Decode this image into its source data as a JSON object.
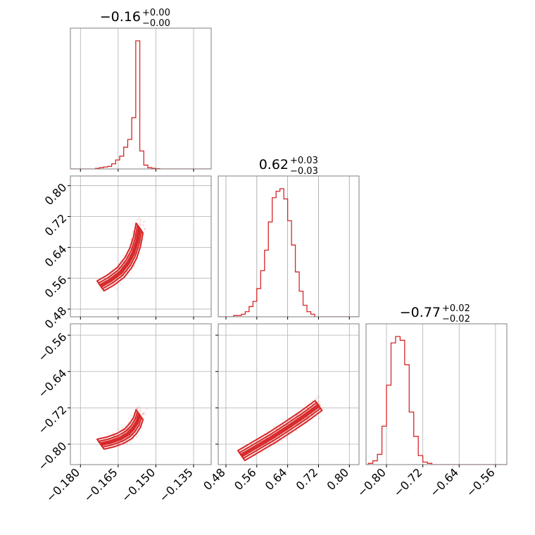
{
  "figure": {
    "accent_color": "#d62728",
    "grid": true,
    "titles": [
      {
        "value": "−0.16",
        "sup": "+0.00",
        "sub": "−0.00"
      },
      {
        "value": "0.62",
        "sup": "+0.03",
        "sub": "−0.03"
      },
      {
        "value": "−0.77",
        "sup": "+0.02",
        "sub": "−0.02"
      }
    ]
  },
  "chart_data": [
    {
      "type": "histogram",
      "panel": "row1-col1",
      "title": "−0.16 (+0.00 / −0.00)",
      "xlim": [
        -0.184,
        -0.128
      ],
      "x_ticks": [
        -0.18,
        -0.165,
        -0.15,
        -0.135
      ],
      "x_tick_labels": [
        "−0.180",
        "−0.165",
        "−0.150",
        "−0.135"
      ],
      "x": [
        -0.1732,
        -0.1716,
        -0.17,
        -0.1684,
        -0.1668,
        -0.1652,
        -0.1636,
        -0.162,
        -0.1604,
        -0.1588,
        -0.1572,
        -0.1556,
        -0.154,
        -0.1524,
        -0.1508,
        -0.1492
      ],
      "values": [
        0.005,
        0.01,
        0.015,
        0.02,
        0.04,
        0.07,
        0.1,
        0.17,
        0.23,
        0.4,
        1.0,
        0.14,
        0.03,
        0.01,
        0.005,
        0.002
      ]
    },
    {
      "type": "scatter+contour",
      "panel": "row2-col1",
      "xlim": [
        -0.184,
        -0.128
      ],
      "ylim": [
        0.46,
        0.825
      ],
      "y_ticks": [
        0.48,
        0.56,
        0.64,
        0.72,
        0.8
      ],
      "y_tick_labels": [
        "0.48",
        "0.56",
        "0.64",
        "0.72",
        "0.80"
      ],
      "ridge": {
        "x": [
          -0.172,
          -0.168,
          -0.164,
          -0.161,
          -0.159,
          -0.1575,
          -0.1565
        ],
        "y": [
          0.54,
          0.555,
          0.575,
          0.6,
          0.625,
          0.655,
          0.69
        ]
      }
    },
    {
      "type": "histogram",
      "panel": "row2-col2",
      "title": "0.62 (+0.03 / −0.03)",
      "xlim": [
        0.46,
        0.825
      ],
      "x_ticks": [
        0.48,
        0.56,
        0.64,
        0.72,
        0.8
      ],
      "x_tick_labels": [
        "0.48",
        "0.56",
        "0.64",
        "0.72",
        "0.80"
      ],
      "x": [
        0.505,
        0.515,
        0.525,
        0.535,
        0.545,
        0.555,
        0.565,
        0.575,
        0.585,
        0.595,
        0.605,
        0.615,
        0.625,
        0.635,
        0.645,
        0.655,
        0.665,
        0.675,
        0.685,
        0.695,
        0.705
      ],
      "values": [
        0.01,
        0.01,
        0.02,
        0.04,
        0.08,
        0.12,
        0.22,
        0.36,
        0.52,
        0.74,
        0.93,
        0.98,
        1.0,
        0.92,
        0.75,
        0.56,
        0.35,
        0.2,
        0.09,
        0.04,
        0.02
      ]
    },
    {
      "type": "scatter+contour",
      "panel": "row3-col1",
      "xlim": [
        -0.184,
        -0.128
      ],
      "ylim": [
        -0.845,
        -0.535
      ],
      "x_ticks": [
        -0.18,
        -0.165,
        -0.15,
        -0.135
      ],
      "x_tick_labels": [
        "−0.180",
        "−0.165",
        "−0.150",
        "−0.135"
      ],
      "y_ticks": [
        -0.8,
        -0.72,
        -0.64,
        -0.56
      ],
      "y_tick_labels": [
        "−0.80",
        "−0.72",
        "−0.64",
        "−0.56"
      ],
      "ridge": {
        "x": [
          -0.172,
          -0.168,
          -0.164,
          -0.161,
          -0.159,
          -0.1575,
          -0.1565
        ],
        "y": [
          -0.8,
          -0.795,
          -0.787,
          -0.777,
          -0.765,
          -0.752,
          -0.735
        ]
      }
    },
    {
      "type": "scatter+contour",
      "panel": "row3-col2",
      "xlim": [
        0.46,
        0.825
      ],
      "ylim": [
        -0.845,
        -0.535
      ],
      "x_ticks": [
        0.48,
        0.56,
        0.64,
        0.72,
        0.8
      ],
      "x_tick_labels": [
        "0.48",
        "0.56",
        "0.64",
        "0.72",
        "0.80"
      ],
      "ridge": {
        "x": [
          0.52,
          0.56,
          0.6,
          0.64,
          0.68,
          0.72
        ],
        "y": [
          -0.825,
          -0.805,
          -0.785,
          -0.763,
          -0.74,
          -0.715
        ]
      }
    },
    {
      "type": "histogram",
      "panel": "row3-col3",
      "title": "−0.77 (+0.02 / −0.02)",
      "xlim": [
        -0.845,
        -0.535
      ],
      "x_ticks": [
        -0.8,
        -0.72,
        -0.64,
        -0.56
      ],
      "x_tick_labels": [
        "−0.80",
        "−0.72",
        "−0.64",
        "−0.56"
      ],
      "x": [
        -0.835,
        -0.825,
        -0.815,
        -0.805,
        -0.795,
        -0.785,
        -0.775,
        -0.765,
        -0.755,
        -0.745,
        -0.735,
        -0.725,
        -0.715,
        -0.705
      ],
      "values": [
        0.01,
        0.03,
        0.08,
        0.3,
        0.62,
        0.95,
        1.0,
        0.97,
        0.78,
        0.41,
        0.22,
        0.07,
        0.02,
        0.01
      ]
    }
  ]
}
